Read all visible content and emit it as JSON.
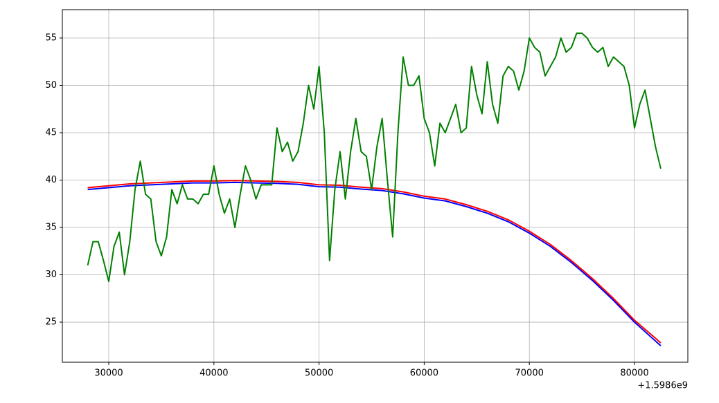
{
  "chart_data": {
    "type": "line",
    "x_offset_label": "+1.5986e9",
    "xlim": [
      25586,
      85072
    ],
    "ylim": [
      20.77,
      57.99
    ],
    "xticks": [
      30000,
      40000,
      50000,
      60000,
      70000,
      80000
    ],
    "yticks": [
      25,
      30,
      35,
      40,
      45,
      50,
      55
    ],
    "grid": true,
    "series": [
      {
        "color": "#0000ff",
        "x": [
          28000,
          30000,
          32000,
          34000,
          36000,
          38000,
          40000,
          42000,
          44000,
          46000,
          48000,
          50000,
          52000,
          54000,
          56000,
          58000,
          60000,
          62000,
          64000,
          66000,
          68000,
          70000,
          72000,
          74000,
          76000,
          78000,
          80000,
          82000,
          82500
        ],
        "values": [
          39.0,
          39.2,
          39.4,
          39.5,
          39.6,
          39.7,
          39.7,
          39.75,
          39.7,
          39.65,
          39.55,
          39.3,
          39.25,
          39.05,
          38.9,
          38.55,
          38.1,
          37.8,
          37.2,
          36.5,
          35.6,
          34.4,
          33.0,
          31.3,
          29.4,
          27.3,
          25.0,
          23.0,
          22.5
        ]
      },
      {
        "color": "#ff0000",
        "x": [
          28000,
          30000,
          32000,
          34000,
          36000,
          38000,
          40000,
          42000,
          44000,
          46000,
          48000,
          50000,
          52000,
          54000,
          56000,
          58000,
          60000,
          62000,
          64000,
          66000,
          68000,
          70000,
          72000,
          74000,
          76000,
          78000,
          80000,
          82000,
          82500
        ],
        "values": [
          39.2,
          39.4,
          39.6,
          39.7,
          39.8,
          39.9,
          39.9,
          39.95,
          39.9,
          39.85,
          39.75,
          39.5,
          39.45,
          39.25,
          39.1,
          38.75,
          38.3,
          38.0,
          37.4,
          36.7,
          35.8,
          34.6,
          33.2,
          31.5,
          29.6,
          27.5,
          25.2,
          23.3,
          22.8
        ]
      },
      {
        "color": "#008000",
        "x": [
          28000,
          28500,
          29000,
          29500,
          30000,
          30500,
          31000,
          31500,
          32000,
          32500,
          33000,
          33500,
          34000,
          34500,
          35000,
          35500,
          36000,
          36500,
          37000,
          37500,
          38000,
          38500,
          39000,
          39500,
          40000,
          40500,
          41000,
          41500,
          42000,
          42500,
          43000,
          43500,
          44000,
          44500,
          45000,
          45500,
          46000,
          46500,
          47000,
          47500,
          48000,
          48500,
          49000,
          49500,
          50000,
          50500,
          51000,
          51500,
          52000,
          52500,
          53000,
          53500,
          54000,
          54500,
          55000,
          55500,
          56000,
          56500,
          57000,
          57500,
          58000,
          58500,
          59000,
          59500,
          60000,
          60500,
          61000,
          61500,
          62000,
          62500,
          63000,
          63500,
          64000,
          64500,
          65000,
          65500,
          66000,
          66500,
          67000,
          67500,
          68000,
          68500,
          69000,
          69500,
          70000,
          70500,
          71000,
          71500,
          72000,
          72500,
          73000,
          73500,
          74000,
          74500,
          75000,
          75500,
          76000,
          76500,
          77000,
          77500,
          78000,
          78500,
          79000,
          79500,
          80000,
          80500,
          81000,
          81500,
          82000,
          82500
        ],
        "values": [
          31,
          33.5,
          33.5,
          31.5,
          29.3,
          33,
          34.5,
          30,
          33.5,
          39,
          42,
          38.5,
          38,
          33.5,
          32,
          34,
          39,
          37.5,
          39.5,
          38,
          38,
          37.5,
          38.5,
          38.5,
          41.5,
          38.5,
          36.5,
          38,
          35,
          38.5,
          41.5,
          40,
          38,
          39.5,
          39.5,
          39.5,
          45.5,
          43,
          44,
          42,
          43,
          46,
          50,
          47.5,
          52,
          45,
          31.5,
          39,
          43,
          38,
          43,
          46.5,
          43,
          42.5,
          39,
          43.5,
          46.5,
          40,
          34,
          45,
          53,
          50,
          50,
          51,
          46.5,
          45,
          41.5,
          46,
          45,
          46.5,
          48,
          45,
          45.5,
          52,
          49,
          47,
          52.5,
          48,
          46,
          51,
          52,
          51.5,
          49.5,
          51.5,
          55,
          54,
          53.5,
          51,
          52,
          53,
          55,
          53.5,
          54,
          55.5,
          55.5,
          55,
          54,
          53.5,
          54,
          52,
          53,
          52.5,
          52,
          50,
          45.5,
          48,
          49.5,
          46.5,
          43.5,
          41.2
        ]
      }
    ]
  }
}
